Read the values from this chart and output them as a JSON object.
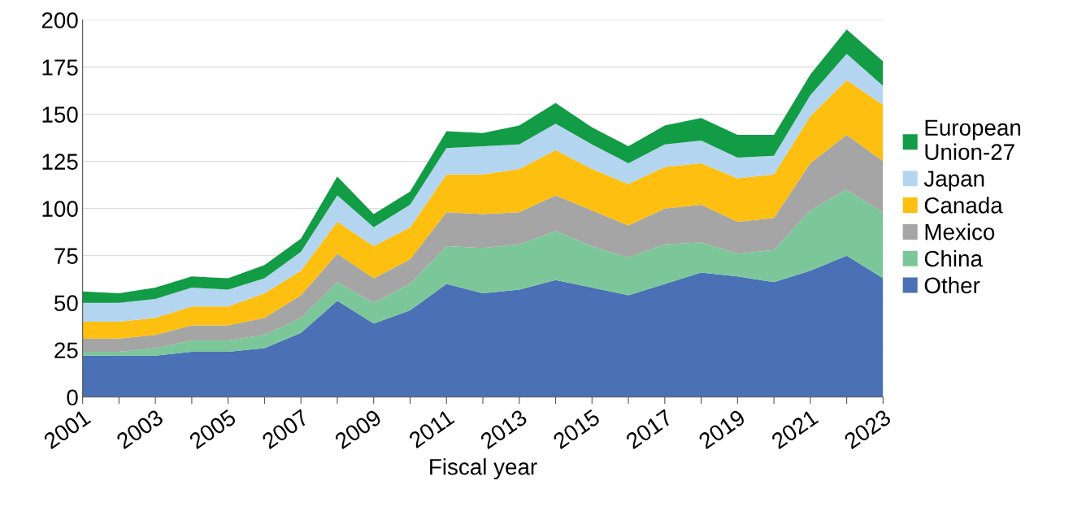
{
  "chart_data": {
    "type": "area",
    "stacked": true,
    "xlabel": "Fiscal year",
    "x": [
      2001,
      2002,
      2003,
      2004,
      2005,
      2006,
      2007,
      2008,
      2009,
      2010,
      2011,
      2012,
      2013,
      2014,
      2015,
      2016,
      2017,
      2018,
      2019,
      2020,
      2021,
      2022,
      2023
    ],
    "series": [
      {
        "name": "Other",
        "color": "#4a70b5",
        "values": [
          22,
          22,
          22,
          24,
          24,
          26,
          34,
          51,
          39,
          46,
          60,
          55,
          57,
          62,
          58,
          54,
          60,
          66,
          64,
          61,
          67,
          75,
          63
        ]
      },
      {
        "name": "China",
        "color": "#7cc79a",
        "values": [
          2,
          2,
          4,
          6,
          6,
          7,
          8,
          10,
          11,
          14,
          20,
          24,
          24,
          26,
          22,
          20,
          21,
          16,
          12,
          17,
          32,
          35,
          35
        ]
      },
      {
        "name": "Mexico",
        "color": "#a5a5a5",
        "values": [
          7,
          7,
          7,
          8,
          8,
          9,
          12,
          15,
          13,
          13,
          18,
          18,
          17,
          19,
          19,
          17,
          19,
          20,
          17,
          17,
          25,
          29,
          27
        ]
      },
      {
        "name": "Canada",
        "color": "#fdbf10",
        "values": [
          9,
          9,
          9,
          10,
          10,
          13,
          13,
          17,
          17,
          17,
          20,
          21,
          23,
          24,
          22,
          22,
          22,
          22,
          23,
          23,
          25,
          29,
          30
        ]
      },
      {
        "name": "Japan",
        "color": "#b4d5f0",
        "values": [
          10,
          10,
          10,
          10,
          9,
          8,
          10,
          14,
          10,
          12,
          14,
          15,
          13,
          14,
          13,
          11,
          12,
          12,
          11,
          10,
          11,
          14,
          10
        ]
      },
      {
        "name": "European\nUnion-27",
        "color": "#119c45",
        "values": [
          6,
          5,
          6,
          6,
          6,
          7,
          7,
          10,
          7,
          7,
          9,
          7,
          10,
          11,
          9,
          9,
          10,
          12,
          12,
          11,
          11,
          13,
          13
        ]
      }
    ],
    "xlim": [
      2001,
      2023
    ],
    "xticks": [
      2001,
      {
        "value": 2002,
        "label": null
      },
      2003,
      {
        "value": 2004,
        "label": null
      },
      2005,
      {
        "value": 2006,
        "label": null
      },
      2007,
      {
        "value": 2008,
        "label": null
      },
      2009,
      {
        "value": 2010,
        "label": null
      },
      2011,
      {
        "value": 2012,
        "label": null
      },
      2013,
      {
        "value": 2014,
        "label": null
      },
      2015,
      {
        "value": 2016,
        "label": null
      },
      2017,
      {
        "value": 2018,
        "label": null
      },
      2019,
      {
        "value": 2020,
        "label": null
      },
      2021,
      {
        "value": 2022,
        "label": null
      },
      2023
    ],
    "ylim": [
      0,
      200
    ],
    "yticks": [
      0,
      25,
      50,
      75,
      100,
      125,
      150,
      175,
      200
    ],
    "grid": "y",
    "legend": "right"
  }
}
